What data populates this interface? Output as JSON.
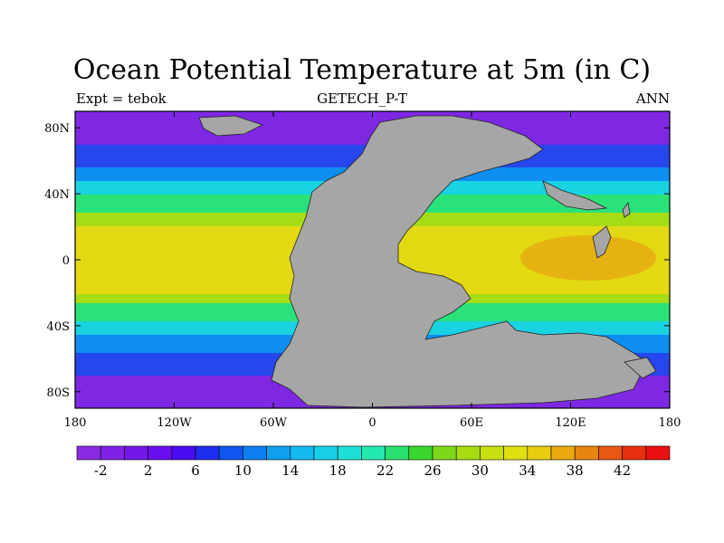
{
  "title": "Ocean Potential Temperature at 5m (in C)",
  "subtitle_left": "Expt = tebok",
  "subtitle_center": "GETECH_P-T",
  "subtitle_right": "ANN",
  "lat_ticks": [
    "80N",
    "40N",
    "0",
    "40S",
    "80S"
  ],
  "lon_ticks": [
    "180",
    "120W",
    "60W",
    "0",
    "60E",
    "120E",
    "180"
  ],
  "colorbar": {
    "labels": [
      "-2",
      "2",
      "6",
      "10",
      "14",
      "18",
      "22",
      "26",
      "30",
      "34",
      "38",
      "42"
    ],
    "colors": [
      "#8a2be2",
      "#7f22e6",
      "#7318ea",
      "#6a10ee",
      "#4a0bf0",
      "#1e2cf0",
      "#0f56f0",
      "#0d7ef0",
      "#0e9ff0",
      "#12baf0",
      "#19cfe8",
      "#1fe0d8",
      "#23e8b0",
      "#2ae070",
      "#3ad82e",
      "#7ed81a",
      "#a8dc12",
      "#c8e010",
      "#e0e010",
      "#e8cc10",
      "#e8aa10",
      "#e88410",
      "#e85810",
      "#e83010",
      "#e81010"
    ]
  },
  "land_color": "#a6a6a6",
  "ocean_colors": {
    "polar": "#7e28e4",
    "subpolar": "#2646ee",
    "cold": "#0d8ef0",
    "cool": "#19d2e2",
    "mild": "#2ae27a",
    "warm": "#a6dc14",
    "hot": "#e3d912",
    "hottest": "#e6b212"
  }
}
